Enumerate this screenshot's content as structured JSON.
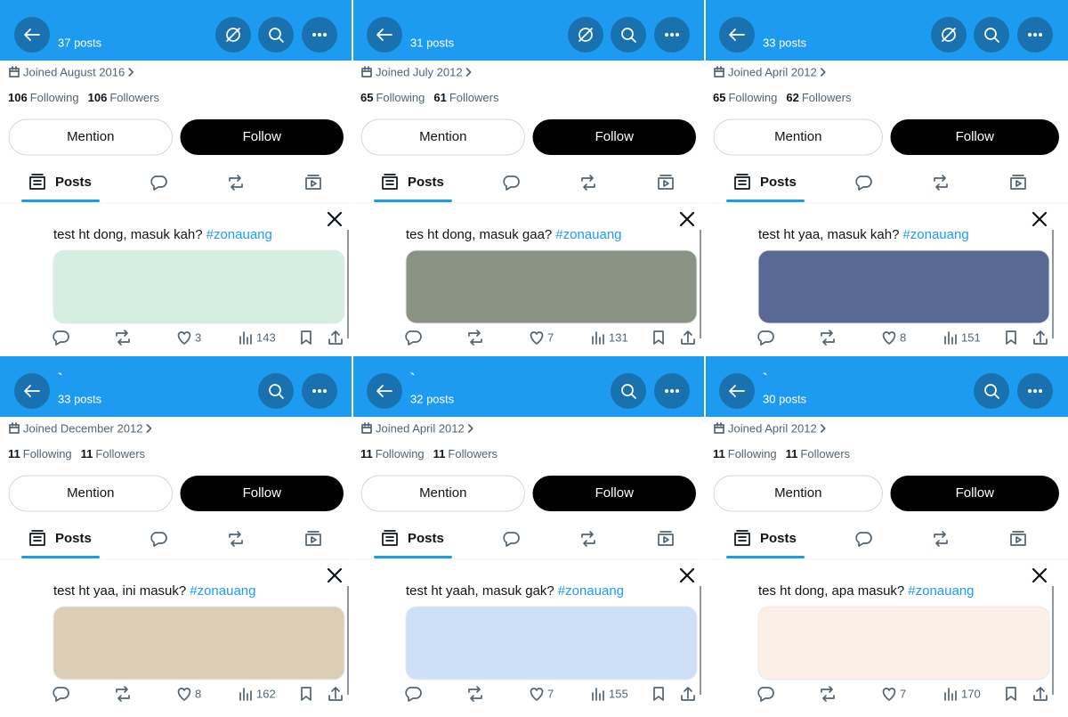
{
  "labels": {
    "following": "Following",
    "followers": "Followers",
    "mention": "Mention",
    "follow": "Follow",
    "posts_tab": "Posts"
  },
  "panels": [
    {
      "posts": "37 posts",
      "show_grok_button": true,
      "joined": "Joined August 2016",
      "following": "106",
      "followers": "106",
      "tweet_text": "test ht dong, masuk kah?",
      "hashtag": "#zonauang",
      "likes": "3",
      "views": "143",
      "image_color": "#d6eee2"
    },
    {
      "posts": "31 posts",
      "show_grok_button": true,
      "joined": "Joined July 2012",
      "following": "65",
      "followers": "61",
      "tweet_text": "tes ht dong, masuk gaa?",
      "hashtag": "#zonauang",
      "likes": "7",
      "views": "131",
      "image_color": "#8b9384"
    },
    {
      "posts": "33 posts",
      "show_grok_button": true,
      "joined": "Joined April 2012",
      "following": "65",
      "followers": "62",
      "tweet_text": "test ht yaa, masuk kah?",
      "hashtag": "#zonauang",
      "likes": "8",
      "views": "151",
      "image_color": "#5a6894"
    },
    {
      "name": "`",
      "posts": "33 posts",
      "show_grok_button": false,
      "joined": "Joined December 2012",
      "following": "11",
      "followers": "11",
      "tweet_text": "test ht yaa, ini masuk?",
      "hashtag": "#zonauang",
      "likes": "8",
      "views": "162",
      "image_color": "#dccdb6"
    },
    {
      "name": "`",
      "posts": "32 posts",
      "show_grok_button": false,
      "joined": "Joined April 2012",
      "following": "11",
      "followers": "11",
      "tweet_text": "test ht yaah, masuk gak?",
      "hashtag": "#zonauang",
      "likes": "7",
      "views": "155",
      "image_color": "#cde0f8"
    },
    {
      "name": "`",
      "posts": "30 posts",
      "show_grok_button": false,
      "joined": "Joined April 2012",
      "following": "11",
      "followers": "11",
      "tweet_text": "tes ht dong, apa masuk?",
      "hashtag": "#zonauang",
      "likes": "7",
      "views": "170",
      "image_color": "#fcefe8"
    }
  ]
}
